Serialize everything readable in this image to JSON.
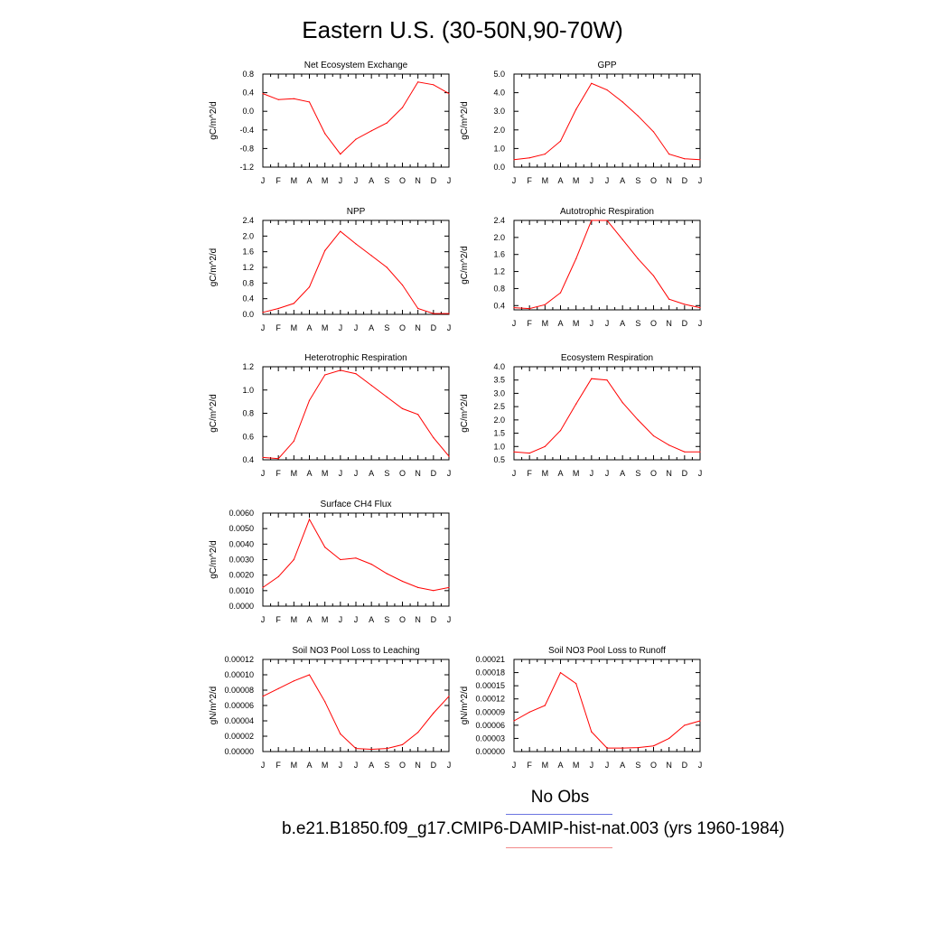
{
  "figure": {
    "title": "Eastern U.S. (30-50N,90-70W)",
    "legend": {
      "obs_label": "No Obs",
      "obs_color": "#6b74e0",
      "case_label": "b.e21.B1850.f09_g17.CMIP6-DAMIP-hist-nat.003 (yrs 1960-1984)",
      "case_color": "#f28a8a"
    },
    "line_color": "#ff0000"
  },
  "chart_data": [
    {
      "type": "line",
      "title": "Net Ecosystem Exchange",
      "ylabel": "gC/m^2/d",
      "categories": [
        "J",
        "F",
        "M",
        "A",
        "M",
        "J",
        "J",
        "A",
        "S",
        "O",
        "N",
        "D",
        "J"
      ],
      "yticks": [
        "0.8",
        "0.4",
        "0.0",
        "-0.4",
        "-0.8",
        "-1.2"
      ],
      "ylim": [
        -1.2,
        0.8
      ],
      "values": [
        0.38,
        0.25,
        0.27,
        0.2,
        -0.48,
        -0.92,
        -0.6,
        -0.42,
        -0.25,
        0.08,
        0.63,
        0.57,
        0.38
      ]
    },
    {
      "type": "line",
      "title": "GPP",
      "ylabel": "gC/m^2/d",
      "categories": [
        "J",
        "F",
        "M",
        "A",
        "M",
        "J",
        "J",
        "A",
        "S",
        "O",
        "N",
        "D",
        "J"
      ],
      "yticks": [
        "5.0",
        "4.0",
        "3.0",
        "2.0",
        "1.0",
        "0.0"
      ],
      "ylim": [
        0,
        5
      ],
      "values": [
        0.4,
        0.5,
        0.7,
        1.4,
        3.1,
        4.5,
        4.15,
        3.5,
        2.75,
        1.9,
        0.7,
        0.45,
        0.4
      ]
    },
    {
      "type": "line",
      "title": "NPP",
      "ylabel": "gC/m^2/d",
      "categories": [
        "J",
        "F",
        "M",
        "A",
        "M",
        "J",
        "J",
        "A",
        "S",
        "O",
        "N",
        "D",
        "J"
      ],
      "yticks": [
        "2.4",
        "2.0",
        "1.6",
        "1.2",
        "0.8",
        "0.4",
        "0.0"
      ],
      "ylim": [
        0,
        2.4
      ],
      "values": [
        0.05,
        0.15,
        0.28,
        0.7,
        1.63,
        2.12,
        1.8,
        1.5,
        1.2,
        0.75,
        0.15,
        0.02,
        0.02
      ]
    },
    {
      "type": "line",
      "title": "Autotrophic Respiration",
      "ylabel": "gC/m^2/d",
      "categories": [
        "J",
        "F",
        "M",
        "A",
        "M",
        "J",
        "J",
        "A",
        "S",
        "O",
        "N",
        "D",
        "J"
      ],
      "yticks": [
        "2.4",
        "2.0",
        "1.6",
        "1.2",
        "0.8",
        "0.4"
      ],
      "ylim": [
        0.3,
        2.4
      ],
      "values": [
        0.35,
        0.33,
        0.42,
        0.7,
        1.5,
        2.4,
        2.4,
        1.95,
        1.5,
        1.1,
        0.55,
        0.43,
        0.35
      ]
    },
    {
      "type": "line",
      "title": "Heterotrophic Respiration",
      "ylabel": "gC/m^2/d",
      "categories": [
        "J",
        "F",
        "M",
        "A",
        "M",
        "J",
        "J",
        "A",
        "S",
        "O",
        "N",
        "D",
        "J"
      ],
      "yticks": [
        "1.2",
        "1.0",
        "0.8",
        "0.6",
        "0.4"
      ],
      "ylim": [
        0.4,
        1.2
      ],
      "values": [
        0.42,
        0.41,
        0.56,
        0.91,
        1.13,
        1.17,
        1.14,
        1.04,
        0.94,
        0.84,
        0.79,
        0.59,
        0.43
      ]
    },
    {
      "type": "line",
      "title": "Ecosystem Respiration",
      "ylabel": "gC/m^2/d",
      "categories": [
        "J",
        "F",
        "M",
        "A",
        "M",
        "J",
        "J",
        "A",
        "S",
        "O",
        "N",
        "D",
        "J"
      ],
      "yticks": [
        "4.0",
        "3.5",
        "3.0",
        "2.5",
        "2.0",
        "1.5",
        "1.0",
        "0.5"
      ],
      "ylim": [
        0.5,
        4.0
      ],
      "values": [
        0.8,
        0.75,
        1.0,
        1.6,
        2.6,
        3.55,
        3.5,
        2.65,
        2.0,
        1.4,
        1.05,
        0.8,
        0.8
      ]
    },
    {
      "type": "line",
      "title": "Surface CH4 Flux",
      "ylabel": "gC/m^2/d",
      "categories": [
        "J",
        "F",
        "M",
        "A",
        "M",
        "J",
        "J",
        "A",
        "S",
        "O",
        "N",
        "D",
        "J"
      ],
      "yticks": [
        "0.0060",
        "0.0050",
        "0.0040",
        "0.0030",
        "0.0020",
        "0.0010",
        "0.0000"
      ],
      "ylim": [
        0,
        0.006
      ],
      "values": [
        0.0012,
        0.0019,
        0.003,
        0.0056,
        0.0038,
        0.003,
        0.0031,
        0.0027,
        0.0021,
        0.0016,
        0.0012,
        0.001,
        0.0012
      ]
    },
    {
      "type": "line",
      "title": "Soil NO3 Pool Loss to Leaching",
      "ylabel": "gN/m^2/d",
      "categories": [
        "J",
        "F",
        "M",
        "A",
        "M",
        "J",
        "J",
        "A",
        "S",
        "O",
        "N",
        "D",
        "J"
      ],
      "yticks": [
        "0.00012",
        "0.00010",
        "0.00008",
        "0.00006",
        "0.00004",
        "0.00002",
        "0.00000"
      ],
      "ylim": [
        0,
        0.00012
      ],
      "values": [
        7.2e-05,
        8.2e-05,
        9.2e-05,
        0.0001,
        6.5e-05,
        2.3e-05,
        4e-06,
        3e-06,
        4e-06,
        9e-06,
        2.5e-05,
        5e-05,
        7.2e-05
      ]
    },
    {
      "type": "line",
      "title": "Soil NO3 Pool Loss to Runoff",
      "ylabel": "gN/m^2/d",
      "categories": [
        "J",
        "F",
        "M",
        "A",
        "M",
        "J",
        "J",
        "A",
        "S",
        "O",
        "N",
        "D",
        "J"
      ],
      "yticks": [
        "0.00021",
        "0.00018",
        "0.00015",
        "0.00012",
        "0.00009",
        "0.00006",
        "0.00003",
        "0.00000"
      ],
      "ylim": [
        0,
        0.00021
      ],
      "values": [
        7e-05,
        9e-05,
        0.000105,
        0.00018,
        0.000155,
        4.5e-05,
        8e-06,
        8e-06,
        9e-06,
        1.3e-05,
        3e-05,
        6e-05,
        7e-05
      ]
    }
  ]
}
